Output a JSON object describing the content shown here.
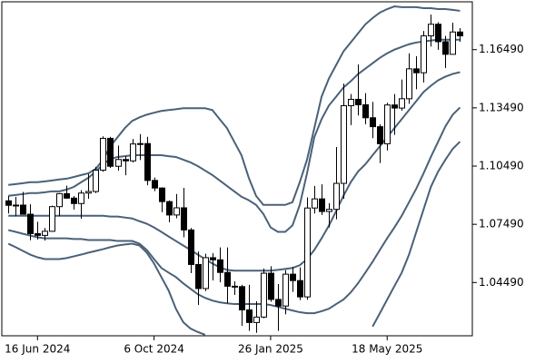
{
  "chart_data": {
    "type": "candlestick",
    "categories": [
      null,
      null,
      null,
      null,
      "16 Jun 2024",
      null,
      null,
      null,
      null,
      null,
      null,
      null,
      null,
      null,
      null,
      null,
      null,
      null,
      null,
      null,
      "6 Oct 2024",
      null,
      null,
      null,
      null,
      null,
      null,
      null,
      null,
      null,
      null,
      null,
      null,
      null,
      null,
      null,
      "26 Jan 2025",
      null,
      null,
      null,
      null,
      null,
      null,
      null,
      null,
      null,
      null,
      null,
      null,
      null,
      null,
      null,
      "18 May 2025",
      null,
      null,
      null,
      null,
      null,
      null,
      null,
      null,
      null,
      null
    ],
    "open": [
      1.087,
      1.0847,
      1.0848,
      1.0801,
      1.0701,
      1.0692,
      1.0713,
      1.084,
      1.0907,
      1.0884,
      1.0856,
      1.091,
      1.0918,
      1.1028,
      1.1192,
      1.1048,
      1.1083,
      1.1076,
      1.1163,
      1.1165,
      1.0975,
      1.0936,
      1.0866,
      1.0797,
      1.0834,
      1.072,
      1.0542,
      1.0418,
      1.0577,
      1.0566,
      1.0501,
      1.043,
      1.0428,
      1.0308,
      1.0243,
      1.0271,
      1.0497,
      1.0362,
      1.0328,
      1.0492,
      1.0459,
      1.0375,
      1.0833,
      1.088,
      1.0815,
      1.0826,
      1.096,
      1.136,
      1.1393,
      1.1365,
      1.1298,
      1.1252,
      1.1164,
      1.1364,
      1.1348,
      1.1396,
      1.155,
      1.153,
      1.172,
      1.178,
      1.169,
      1.1625,
      1.174
    ],
    "high": [
      1.0895,
      1.089,
      1.0916,
      1.0852,
      1.0762,
      1.073,
      1.0845,
      1.091,
      1.0948,
      1.0895,
      1.0925,
      1.1008,
      1.1045,
      1.1202,
      1.12,
      1.1155,
      1.11,
      1.1189,
      1.1214,
      1.12,
      1.099,
      1.094,
      1.0872,
      1.0905,
      1.0937,
      1.073,
      1.0609,
      1.0597,
      1.06,
      1.063,
      1.063,
      1.0456,
      1.0437,
      1.0437,
      1.0353,
      1.0521,
      1.0533,
      1.0441,
      1.0513,
      1.053,
      1.0527,
      1.0888,
      1.0947,
      1.0955,
      1.0858,
      1.1147,
      1.1474,
      1.142,
      1.1573,
      1.1425,
      1.138,
      1.1265,
      1.1375,
      1.142,
      1.1495,
      1.163,
      1.1615,
      1.1745,
      1.183,
      1.179,
      1.172,
      1.1788,
      1.176
    ],
    "low": [
      1.0805,
      1.079,
      1.08,
      1.0667,
      1.0671,
      1.0665,
      1.071,
      1.079,
      1.088,
      1.0825,
      1.0778,
      1.088,
      1.091,
      1.102,
      1.104,
      1.1025,
      1.1002,
      1.1068,
      1.108,
      1.095,
      1.092,
      1.0812,
      1.076,
      1.078,
      1.0682,
      1.0497,
      1.0333,
      1.0405,
      1.046,
      1.045,
      1.0342,
      1.0385,
      1.0226,
      1.02,
      1.019,
      1.0265,
      1.035,
      1.02,
      1.0285,
      1.0401,
      1.0358,
      1.036,
      1.0805,
      1.0797,
      1.0733,
      1.0775,
      1.088,
      1.126,
      1.131,
      1.1265,
      1.1193,
      1.1065,
      1.113,
      1.121,
      1.1335,
      1.137,
      1.1445,
      1.148,
      1.1665,
      1.1648,
      1.1555,
      1.1625,
      1.169
    ],
    "close": [
      1.0847,
      1.0848,
      1.0801,
      1.0701,
      1.0692,
      1.0713,
      1.084,
      1.0907,
      1.0884,
      1.0856,
      1.091,
      1.0918,
      1.1028,
      1.1192,
      1.1048,
      1.1083,
      1.1076,
      1.1163,
      1.1165,
      1.0975,
      1.0936,
      1.0866,
      1.0797,
      1.0834,
      1.072,
      1.0542,
      1.0418,
      1.0577,
      1.0566,
      1.0501,
      1.043,
      1.0428,
      1.0308,
      1.0243,
      1.0271,
      1.0497,
      1.0362,
      1.0328,
      1.0492,
      1.0459,
      1.0375,
      1.0833,
      1.088,
      1.0815,
      1.0826,
      1.096,
      1.136,
      1.1393,
      1.1365,
      1.1298,
      1.1252,
      1.1164,
      1.1364,
      1.1348,
      1.1396,
      1.155,
      1.153,
      1.172,
      1.178,
      1.169,
      1.1625,
      1.174,
      1.172
    ],
    "up_color": "#ffffff",
    "down_color": "#000000",
    "candle_edge": "#000000",
    "series": [
      {
        "color": "#4a6178",
        "values": [
          1.0952,
          1.0956,
          1.0961,
          1.0966,
          1.0966,
          1.097,
          1.0975,
          1.098,
          1.0984,
          1.0993,
          1.1003,
          1.1012,
          1.1035,
          1.1082,
          1.1151,
          1.1198,
          1.1245,
          1.1282,
          1.13,
          1.1314,
          1.1324,
          1.1333,
          1.1338,
          1.1342,
          1.1347,
          1.1347,
          1.1347,
          1.1347,
          1.1338,
          1.1291,
          1.1245,
          1.1175,
          1.1105,
          1.0989,
          1.0896,
          1.0849,
          1.0849,
          1.0849,
          1.0849,
          1.0863,
          1.0966,
          1.1082,
          1.1245,
          1.1407,
          1.15,
          1.157,
          1.164,
          1.1686,
          1.1733,
          1.1779,
          1.1812,
          1.184,
          1.1858,
          1.1872,
          1.1868,
          1.1868,
          1.1868,
          1.1863,
          1.1863,
          1.1858,
          1.1858,
          1.1854,
          1.1849
        ]
      },
      {
        "color": "#4a6178",
        "values": [
          1.0896,
          1.09,
          1.0905,
          1.091,
          1.091,
          1.0914,
          1.0919,
          1.0919,
          1.0928,
          1.0942,
          1.0966,
          1.0989,
          1.1021,
          1.1058,
          1.1086,
          1.1096,
          1.11,
          1.1105,
          1.1105,
          1.1105,
          1.1105,
          1.1105,
          1.11,
          1.1096,
          1.1082,
          1.1068,
          1.1049,
          1.1026,
          1.1003,
          1.0975,
          1.0947,
          1.0919,
          1.0891,
          1.0873,
          1.0849,
          1.0803,
          1.0733,
          1.071,
          1.071,
          1.0743,
          1.0849,
          1.1012,
          1.1198,
          1.1291,
          1.1361,
          1.1407,
          1.1454,
          1.1486,
          1.1523,
          1.1551,
          1.1579,
          1.1607,
          1.163,
          1.1649,
          1.1663,
          1.1677,
          1.1686,
          1.1691,
          1.1696,
          1.17,
          1.17,
          1.17,
          1.17
        ]
      },
      {
        "color": "#4a6178",
        "values": [
          1.0793,
          1.0793,
          1.0793,
          1.0793,
          1.0793,
          1.0793,
          1.0793,
          1.0793,
          1.0793,
          1.0793,
          1.0793,
          1.0793,
          1.0793,
          1.0793,
          1.0789,
          1.0789,
          1.0784,
          1.0779,
          1.0765,
          1.0752,
          1.0733,
          1.071,
          1.0686,
          1.0663,
          1.064,
          1.0617,
          1.0593,
          1.057,
          1.0547,
          1.0528,
          1.0514,
          1.051,
          1.051,
          1.051,
          1.051,
          1.051,
          1.051,
          1.0514,
          1.0519,
          1.0524,
          1.0538,
          1.057,
          1.0617,
          1.0677,
          1.0742,
          1.0817,
          1.0896,
          1.0966,
          1.1021,
          1.1058,
          1.1105,
          1.1151,
          1.1198,
          1.1245,
          1.1291,
          1.1338,
          1.1384,
          1.1431,
          1.1463,
          1.1491,
          1.151,
          1.1524,
          1.1533
        ]
      },
      {
        "color": "#4a6178",
        "values": [
          1.0719,
          1.071,
          1.07,
          1.0691,
          1.0682,
          1.0677,
          1.0677,
          1.0677,
          1.0677,
          1.0673,
          1.0673,
          1.0668,
          1.0668,
          1.0668,
          1.0668,
          1.0663,
          1.0663,
          1.0663,
          1.0649,
          1.0617,
          1.057,
          1.0524,
          1.05,
          1.0477,
          1.0445,
          1.0417,
          1.0389,
          1.037,
          1.0356,
          1.0347,
          1.0342,
          1.0338,
          1.0338,
          1.0338,
          1.0338,
          1.0338,
          1.0333,
          1.0324,
          1.0314,
          1.0305,
          1.0296,
          1.0291,
          1.0291,
          1.0301,
          1.0314,
          1.0338,
          1.0361,
          1.0398,
          1.0445,
          1.05,
          1.0556,
          1.0617,
          1.0677,
          1.0733,
          1.0793,
          1.0863,
          1.0933,
          1.1012,
          1.1096,
          1.1175,
          1.1254,
          1.1314,
          1.1351
        ]
      },
      {
        "color": "#4a6178",
        "values": [
          1.0649,
          1.0631,
          1.0612,
          1.0593,
          1.0579,
          1.057,
          1.057,
          1.057,
          1.0575,
          1.0584,
          1.0593,
          1.0603,
          1.0612,
          1.0621,
          1.0631,
          1.064,
          1.0645,
          1.0649,
          1.064,
          1.0603,
          1.0547,
          1.0477,
          1.0408,
          1.0314,
          1.0245,
          1.0212,
          1.0194,
          1.018,
          null,
          null,
          null,
          null,
          null,
          null,
          null,
          null,
          null,
          null,
          null,
          null,
          null,
          null,
          null,
          null,
          null,
          null,
          null,
          null,
          null,
          null,
          1.0222,
          1.0291,
          1.0361,
          1.0431,
          1.05,
          1.0593,
          1.071,
          1.0826,
          1.0942,
          1.1021,
          1.1082,
          1.1138,
          1.1175
        ]
      }
    ],
    "ylim": [
      1.01746,
      1.18955
    ],
    "yticks": [
      {
        "value": 1.0449,
        "label": "1.04490"
      },
      {
        "value": 1.0749,
        "label": "1.07490"
      },
      {
        "value": 1.1049,
        "label": "1.10490"
      },
      {
        "value": 1.1349,
        "label": "1.13490"
      },
      {
        "value": 1.1649,
        "label": "1.16490"
      }
    ],
    "grid": false
  }
}
